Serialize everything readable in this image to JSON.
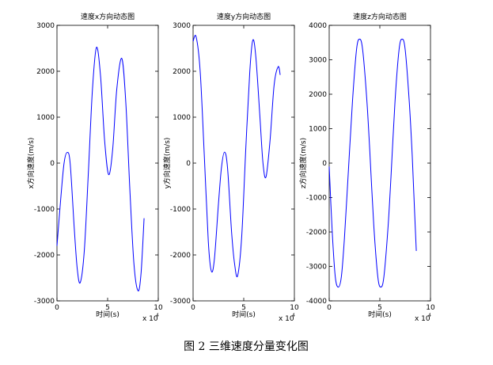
{
  "chart_data": [
    {
      "type": "line",
      "title": "速度x方向动态图",
      "xlabel": "时间(s)",
      "ylabel": "x方向速度(m/s)",
      "x_multiplier": "x 10",
      "x_multiplier_exponent": "4",
      "xlim": [
        0,
        10
      ],
      "xticks": [
        0,
        5,
        10
      ],
      "ylim": [
        -3000,
        3000
      ],
      "yticks": [
        -3000,
        -2000,
        -1000,
        0,
        1000,
        2000,
        3000
      ],
      "x": [
        0,
        0.4,
        0.7,
        1.0,
        1.3,
        1.7,
        2.0,
        2.3,
        2.7,
        3.1,
        3.5,
        3.9,
        4.3,
        4.7,
        5.1,
        5.5,
        5.9,
        6.4,
        6.8,
        7.2,
        7.6,
        8.0,
        8.3,
        8.6
      ],
      "series": [
        {
          "color": "#0000ff",
          "values": [
            -1800,
            -700,
            0,
            230,
            0,
            -1400,
            -2300,
            -2600,
            -1900,
            -200,
            1600,
            2520,
            1900,
            500,
            -250,
            300,
            1600,
            2280,
            1300,
            -600,
            -2200,
            -2780,
            -2400,
            -1200
          ]
        }
      ]
    },
    {
      "type": "line",
      "title": "速度y方向动态图",
      "xlabel": "时间(s)",
      "ylabel": "y方向速度(m/s)",
      "x_multiplier": "x 10",
      "x_multiplier_exponent": "4",
      "xlim": [
        0,
        10
      ],
      "xticks": [
        0,
        5,
        10
      ],
      "ylim": [
        -3000,
        3000
      ],
      "yticks": [
        -3000,
        -2000,
        -1000,
        0,
        1000,
        2000,
        3000
      ],
      "x": [
        0,
        0.3,
        0.7,
        1.1,
        1.5,
        1.8,
        2.1,
        2.5,
        2.8,
        3.1,
        3.4,
        3.8,
        4.1,
        4.4,
        4.8,
        5.2,
        5.6,
        5.9,
        6.2,
        6.6,
        6.9,
        7.2,
        7.6,
        8.0,
        8.4,
        8.6
      ],
      "series": [
        {
          "color": "#0000ff",
          "values": [
            2650,
            2750,
            2000,
            200,
            -1700,
            -2350,
            -2100,
            -900,
            -100,
            240,
            -100,
            -1500,
            -2200,
            -2450,
            -1600,
            300,
            2000,
            2680,
            2300,
            1000,
            0,
            -300,
            500,
            1700,
            2100,
            1920
          ]
        }
      ]
    },
    {
      "type": "line",
      "title": "速度z方向动态图",
      "xlabel": "时间(s)",
      "ylabel": "z方向速度(m/s)",
      "x_multiplier": "x 10",
      "x_multiplier_exponent": "4",
      "xlim": [
        0,
        10
      ],
      "xticks": [
        0,
        5,
        10
      ],
      "ylim": [
        -4000,
        4000
      ],
      "yticks": [
        -4000,
        -3000,
        -2000,
        -1000,
        0,
        1000,
        2000,
        3000,
        4000
      ],
      "x": [
        0,
        0.3,
        0.6,
        0.9,
        1.2,
        1.5,
        1.9,
        2.3,
        2.7,
        3.0,
        3.3,
        3.7,
        4.0,
        4.4,
        4.8,
        5.1,
        5.4,
        5.8,
        6.1,
        6.5,
        6.9,
        7.2,
        7.5,
        7.9,
        8.2,
        8.4,
        8.6
      ],
      "series": [
        {
          "color": "#0000ff",
          "values": [
            -100,
            -2000,
            -3300,
            -3600,
            -3300,
            -2200,
            -200,
            1800,
            3300,
            3600,
            3300,
            1900,
            400,
            -1800,
            -3300,
            -3600,
            -3300,
            -1900,
            -400,
            1800,
            3300,
            3600,
            3300,
            1800,
            200,
            -1200,
            -2550
          ]
        }
      ]
    }
  ],
  "caption": "图 2  三维速度分量变化图"
}
